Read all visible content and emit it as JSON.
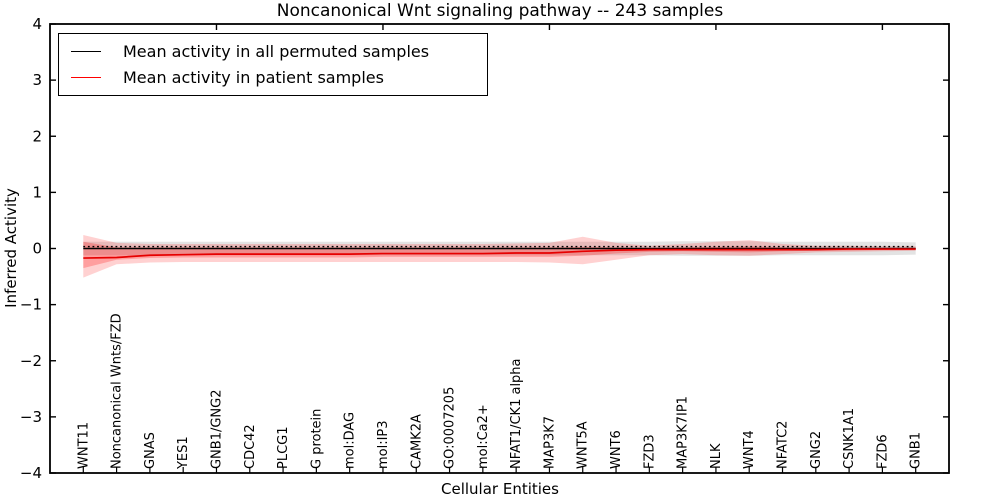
{
  "title": "Noncanonical Wnt signaling pathway -- 243 samples",
  "legend": [
    {
      "label": "Mean activity in all permuted samples",
      "color": "#000000"
    },
    {
      "label": "Mean activity in patient samples",
      "color": "#ff0000"
    }
  ],
  "colors": {
    "patient_line": "#e60000",
    "permuted_line": "#000000",
    "patient_band": "#ff0000",
    "permuted_band": "#808080",
    "axis": "#000000"
  },
  "chart_data": {
    "type": "line",
    "title": "Noncanonical Wnt signaling pathway -- 243 samples",
    "xlabel": "Cellular Entities",
    "ylabel": "Inferred Activity",
    "ylim": [
      -4,
      4
    ],
    "yticks": [
      -4,
      -3,
      -2,
      -1,
      0,
      1,
      2,
      3,
      4
    ],
    "xlim": [
      -1,
      26
    ],
    "grid": false,
    "legend_position": "upper left",
    "top_ticks_at": [
      4,
      9,
      14,
      19,
      24
    ],
    "categories": [
      "WNT11",
      "Noncanonical Wnts/FZD",
      "GNAS",
      "YES1",
      "GNB1/GNG2",
      "CDC42",
      "PLCG1",
      "G protein",
      "mol:DAG",
      "mol:IP3",
      "CAMK2A",
      "GO:0007205",
      "mol:Ca2+",
      "NFAT1/CK1 alpha",
      "MAP3K7",
      "WNT5A",
      "WNT6",
      "FZD3",
      "MAP3K7IP1",
      "NLK",
      "WNT4",
      "NFATC2",
      "GNG2",
      "CSNK1A1",
      "FZD6",
      "GNB1"
    ],
    "series": [
      {
        "name": "permuted-median-dotted",
        "color": "#000000",
        "dash": "dotted",
        "width": 1.4,
        "values": [
          0.035,
          0.035,
          0.035,
          0.035,
          0.035,
          0.035,
          0.035,
          0.035,
          0.035,
          0.035,
          0.035,
          0.035,
          0.035,
          0.035,
          0.035,
          0.035,
          0.035,
          0.035,
          0.035,
          0.035,
          0.035,
          0.035,
          0.035,
          0.035,
          0.035,
          0.035
        ]
      },
      {
        "name": "Mean activity in all permuted samples",
        "color": "#000000",
        "dash": "solid",
        "width": 1.4,
        "values": [
          0,
          0,
          0,
          0,
          0,
          0,
          0,
          0,
          0,
          0,
          0,
          0,
          0,
          0,
          0,
          0,
          0,
          0,
          0,
          0,
          0,
          0,
          0,
          0,
          0,
          0
        ]
      },
      {
        "name": "Mean activity in patient samples",
        "color": "#e60000",
        "dash": "solid",
        "width": 1.7,
        "values": [
          -0.17,
          -0.16,
          -0.12,
          -0.11,
          -0.1,
          -0.1,
          -0.1,
          -0.1,
          -0.1,
          -0.09,
          -0.09,
          -0.09,
          -0.09,
          -0.08,
          -0.08,
          -0.05,
          -0.03,
          -0.02,
          -0.02,
          -0.02,
          -0.02,
          -0.02,
          -0.02,
          -0.01,
          -0.01,
          -0.01
        ]
      }
    ],
    "bands": [
      {
        "name": "permuted-range",
        "color": "#808080",
        "opacity": 0.22,
        "upper": [
          0.12,
          0.12,
          0.12,
          0.12,
          0.12,
          0.12,
          0.12,
          0.12,
          0.12,
          0.12,
          0.12,
          0.12,
          0.12,
          0.12,
          0.12,
          0.12,
          0.12,
          0.12,
          0.13,
          0.13,
          0.13,
          0.12,
          0.12,
          0.12,
          0.12,
          0.11
        ],
        "lower": [
          -0.12,
          -0.12,
          -0.12,
          -0.12,
          -0.12,
          -0.12,
          -0.12,
          -0.12,
          -0.12,
          -0.12,
          -0.12,
          -0.12,
          -0.12,
          -0.12,
          -0.12,
          -0.12,
          -0.12,
          -0.12,
          -0.13,
          -0.13,
          -0.13,
          -0.12,
          -0.12,
          -0.12,
          -0.12,
          -0.11
        ]
      },
      {
        "name": "patient-range-outer",
        "color": "#ff0000",
        "opacity": 0.18,
        "upper": [
          0.24,
          0.1,
          0.08,
          0.08,
          0.08,
          0.08,
          0.08,
          0.08,
          0.08,
          0.08,
          0.08,
          0.08,
          0.08,
          0.09,
          0.1,
          0.21,
          0.1,
          0.05,
          0.08,
          0.12,
          0.15,
          0.08,
          0.05,
          0.05,
          0.04,
          0.04
        ],
        "lower": [
          -0.52,
          -0.28,
          -0.25,
          -0.24,
          -0.24,
          -0.24,
          -0.24,
          -0.24,
          -0.24,
          -0.24,
          -0.24,
          -0.24,
          -0.24,
          -0.24,
          -0.25,
          -0.28,
          -0.2,
          -0.12,
          -0.1,
          -0.12,
          -0.13,
          -0.1,
          -0.07,
          -0.06,
          -0.05,
          -0.04
        ]
      },
      {
        "name": "patient-range-inner",
        "color": "#ff0000",
        "opacity": 0.24,
        "upper": [
          0.12,
          0.02,
          0.02,
          0.02,
          0.02,
          0.02,
          0.02,
          0.02,
          0.02,
          0.02,
          0.02,
          0.02,
          0.02,
          0.02,
          0.02,
          0.03,
          0.02,
          0.01,
          0.02,
          0.03,
          0.04,
          0.02,
          0.01,
          0.01,
          0.01,
          0.01
        ],
        "lower": [
          -0.35,
          -0.2,
          -0.17,
          -0.16,
          -0.16,
          -0.16,
          -0.16,
          -0.16,
          -0.16,
          -0.15,
          -0.15,
          -0.15,
          -0.15,
          -0.15,
          -0.15,
          -0.13,
          -0.09,
          -0.06,
          -0.05,
          -0.06,
          -0.07,
          -0.05,
          -0.04,
          -0.04,
          -0.03,
          -0.03
        ]
      }
    ]
  }
}
